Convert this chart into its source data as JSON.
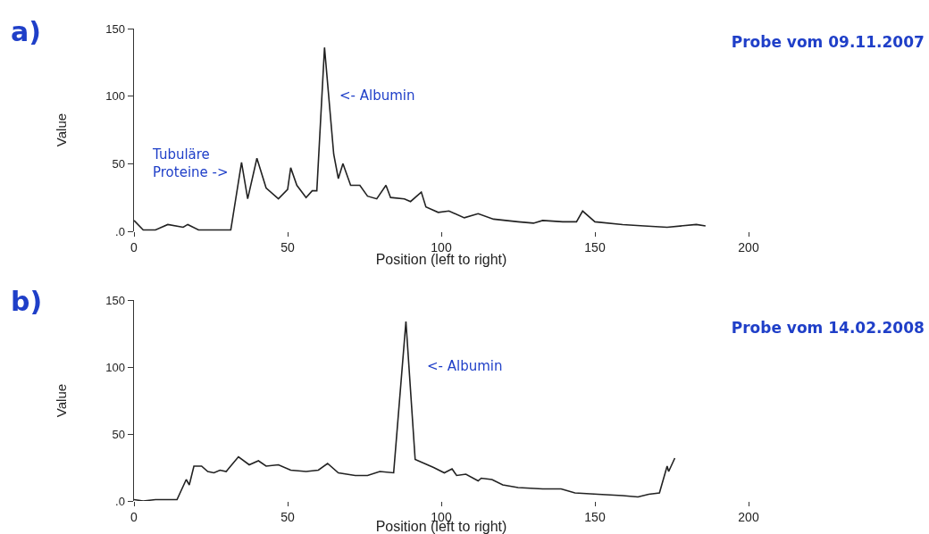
{
  "chart_data": [
    {
      "type": "line",
      "title": "Probe vom 09.11.2007",
      "xlabel": "Position (left to right)",
      "ylabel": "Value",
      "xlim": [
        0,
        200
      ],
      "ylim": [
        0,
        150
      ],
      "xticks": [
        0,
        50,
        100,
        150,
        200
      ],
      "yticks": [
        {
          "value": 0,
          "label": ".0"
        },
        50,
        100,
        150
      ],
      "annotations": [
        "a)",
        "<- Albumin",
        "Tubuläre\nProteine ->"
      ],
      "x": [
        0,
        3,
        7,
        11,
        16,
        17.5,
        21,
        27,
        31.5,
        35,
        37,
        40,
        43,
        47,
        50,
        51,
        53,
        56,
        58,
        59.5,
        62,
        65,
        66.5,
        68,
        70.5,
        73.5,
        76,
        79,
        82,
        83.5,
        88,
        90,
        93.5,
        95,
        99,
        102.5,
        107.5,
        112,
        117,
        125,
        130,
        133,
        139.5,
        144,
        146,
        150,
        159,
        166,
        173.5,
        183,
        186
      ],
      "series": [
        {
          "color": "#222222",
          "values": [
            8,
            1,
            1,
            5,
            3,
            5,
            1,
            1,
            1,
            51,
            24,
            54,
            32,
            24,
            31,
            47,
            34,
            25,
            30,
            30,
            136,
            57,
            39,
            50,
            34,
            34,
            26,
            24,
            34,
            25,
            24,
            22,
            29,
            18,
            14,
            15,
            10,
            13,
            9,
            7,
            6,
            8,
            7,
            7,
            15,
            7,
            5,
            4,
            3,
            5,
            4
          ]
        }
      ]
    },
    {
      "type": "line",
      "title": "Probe vom 14.02.2008",
      "xlabel": "Position (left to right)",
      "ylabel": "Value",
      "xlim": [
        0,
        200
      ],
      "ylim": [
        0,
        150
      ],
      "xticks": [
        0,
        50,
        100,
        150,
        200
      ],
      "yticks": [
        {
          "value": 0,
          "label": ".0"
        },
        50,
        100,
        150
      ],
      "annotations": [
        "b)",
        "<- Albumin"
      ],
      "x": [
        0,
        3,
        7,
        14,
        16,
        17,
        18,
        19.5,
        22,
        24,
        26,
        28,
        30,
        34,
        37.5,
        40.5,
        43,
        47,
        51,
        56,
        60,
        63,
        66.5,
        72,
        76,
        80,
        84.5,
        88.5,
        91.5,
        93.5,
        97.5,
        101,
        103.5,
        105,
        108,
        112,
        113,
        116.5,
        120,
        125,
        133,
        139,
        143.5,
        151,
        159,
        164,
        167.5,
        171,
        173.5,
        174,
        176
      ],
      "series": [
        {
          "color": "#222222",
          "values": [
            1,
            0,
            1,
            1,
            11,
            16,
            12,
            26,
            26,
            22,
            21,
            23,
            22,
            33,
            27,
            30,
            26,
            27,
            23,
            22,
            23,
            28,
            21,
            19,
            19,
            22,
            21,
            134,
            31,
            29,
            25,
            21,
            24,
            19,
            20,
            15,
            17,
            16,
            12,
            10,
            9,
            9,
            6,
            5,
            4,
            3,
            5,
            6,
            26,
            22,
            32
          ]
        }
      ]
    }
  ]
}
